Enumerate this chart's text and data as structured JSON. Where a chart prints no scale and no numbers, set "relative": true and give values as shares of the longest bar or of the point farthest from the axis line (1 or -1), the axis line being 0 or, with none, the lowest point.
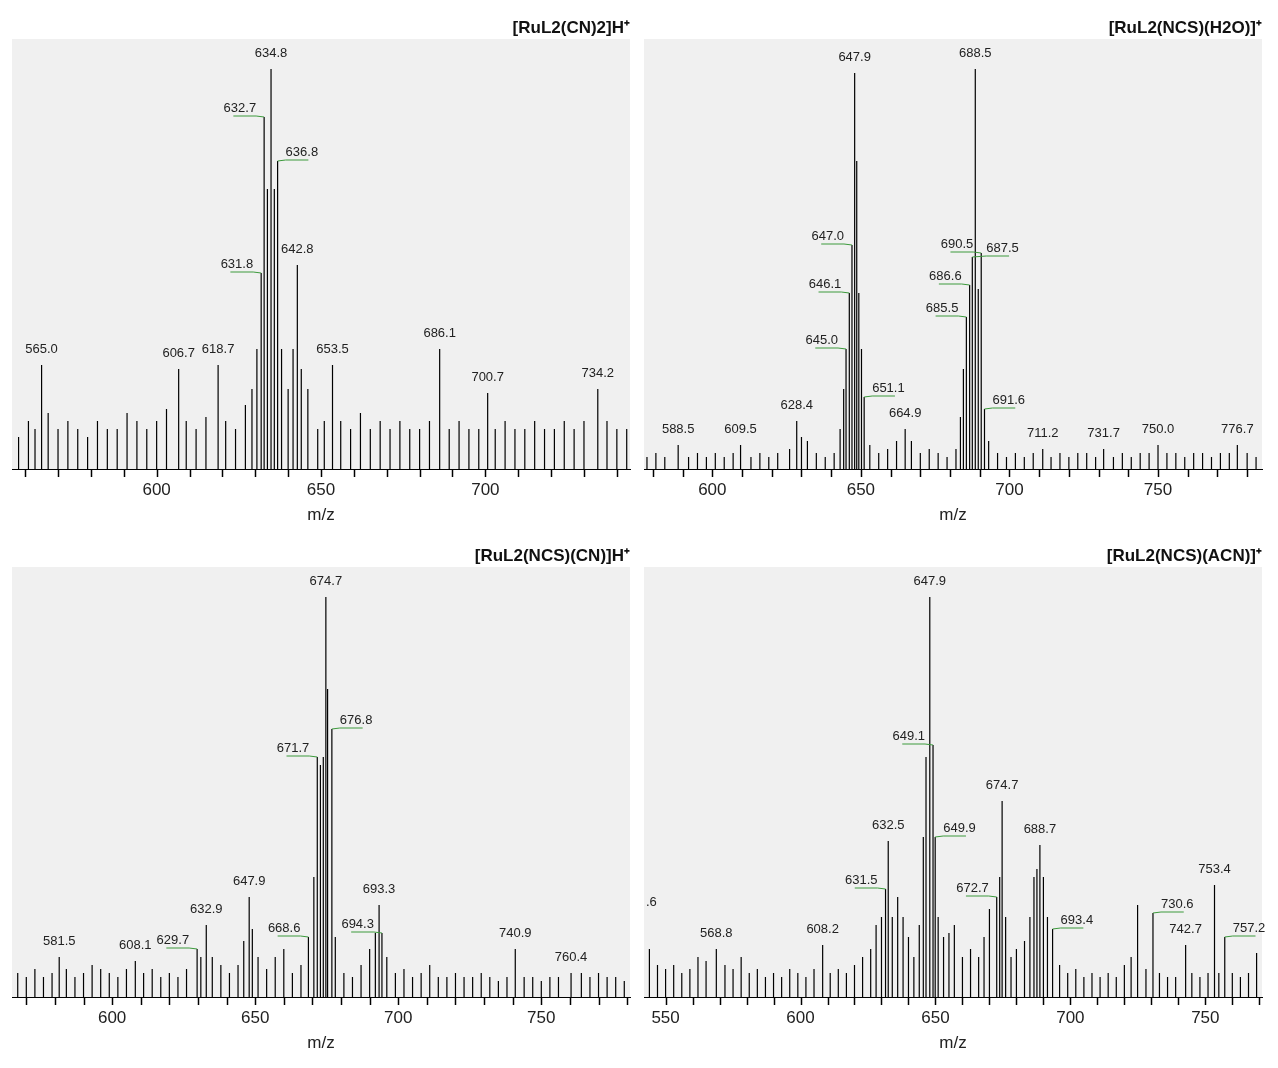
{
  "chart_data": [
    {
      "type": "bar",
      "title": "[RuL2(CN)2]H⁺",
      "xlabel": "m/z",
      "relative": true,
      "color": "#000000",
      "x": [
        558,
        561,
        563,
        565.0,
        567,
        570,
        573,
        576,
        579,
        582,
        585,
        588,
        591,
        594,
        597,
        600,
        603,
        606.7,
        609,
        612,
        615,
        618.7,
        621,
        624,
        627,
        629,
        630.5,
        631.8,
        632.7,
        633.7,
        634.8,
        635.8,
        636.8,
        638,
        640,
        641.5,
        642.8,
        644,
        646,
        649,
        651,
        653.5,
        656,
        659,
        662,
        665,
        668,
        671,
        674,
        677,
        680,
        683,
        686.1,
        689,
        692,
        695,
        698,
        700.7,
        703,
        706,
        709,
        712,
        715,
        718,
        721,
        724,
        727,
        730,
        734.2,
        737,
        740,
        743
      ],
      "values": [
        0.08,
        0.12,
        0.1,
        0.26,
        0.14,
        0.1,
        0.12,
        0.1,
        0.08,
        0.12,
        0.1,
        0.1,
        0.14,
        0.12,
        0.1,
        0.12,
        0.15,
        0.25,
        0.12,
        0.1,
        0.13,
        0.26,
        0.12,
        0.1,
        0.16,
        0.2,
        0.3,
        0.49,
        0.88,
        0.7,
        1,
        0.7,
        0.77,
        0.3,
        0.2,
        0.3,
        0.51,
        0.25,
        0.2,
        0.1,
        0.12,
        0.26,
        0.12,
        0.1,
        0.14,
        0.1,
        0.12,
        0.1,
        0.12,
        0.1,
        0.1,
        0.12,
        0.3,
        0.1,
        0.12,
        0.1,
        0.1,
        0.19,
        0.1,
        0.12,
        0.1,
        0.1,
        0.12,
        0.1,
        0.1,
        0.12,
        0.1,
        0.12,
        0.2,
        0.12,
        0.1,
        0.1
      ],
      "xlim": [
        556,
        744
      ],
      "xticks": [
        {
          "value": 560,
          "label": null
        },
        {
          "value": 570,
          "label": null
        },
        {
          "value": 580,
          "label": null
        },
        {
          "value": 590,
          "label": null
        },
        600,
        {
          "value": 610,
          "label": null
        },
        {
          "value": 620,
          "label": null
        },
        {
          "value": 630,
          "label": null
        },
        {
          "value": 640,
          "label": null
        },
        650,
        {
          "value": 660,
          "label": null
        },
        {
          "value": 670,
          "label": null
        },
        {
          "value": 680,
          "label": null
        },
        {
          "value": 690,
          "label": null
        },
        700,
        {
          "value": 710,
          "label": null
        },
        {
          "value": 720,
          "label": null
        },
        {
          "value": 730,
          "label": null
        },
        {
          "value": 740,
          "label": null
        }
      ],
      "annotations": [
        {
          "text": "565.0",
          "x": 565.0,
          "y": 0.26
        },
        {
          "text": "606.7",
          "x": 606.7,
          "y": 0.25
        },
        {
          "text": "618.7",
          "x": 618.7,
          "y": 0.26
        },
        {
          "text": "631.8",
          "x": 631.8,
          "y": 0.49
        },
        {
          "text": "632.7",
          "x": 632.7,
          "y": 0.88
        },
        {
          "text": "634.8",
          "x": 634.8,
          "y": 1
        },
        {
          "text": "636.8",
          "x": 636.8,
          "y": 0.77
        },
        {
          "text": "642.8",
          "x": 642.8,
          "y": 0.51
        },
        {
          "text": "653.5",
          "x": 653.5,
          "y": 0.26
        },
        {
          "text": "686.1",
          "x": 686.1,
          "y": 0.3
        },
        {
          "text": "700.7",
          "x": 700.7,
          "y": 0.19
        },
        {
          "text": "734.2",
          "x": 734.2,
          "y": 0.2
        }
      ]
    },
    {
      "type": "bar",
      "title": "[RuL2(NCS)(H2O)]⁺",
      "xlabel": "m/z",
      "relative": true,
      "color": "#000000",
      "x": [
        578,
        581,
        584,
        588.5,
        592,
        595,
        598,
        601,
        604,
        607,
        609.5,
        613,
        616,
        619,
        622,
        626,
        628.4,
        630,
        632,
        635,
        638,
        641,
        643,
        644.2,
        645.0,
        646.1,
        647.0,
        647.9,
        648.6,
        649.3,
        650.2,
        651.1,
        653,
        656,
        659,
        662,
        664.9,
        667,
        670,
        673,
        676,
        679,
        682,
        683.5,
        684.5,
        685.5,
        686.6,
        687.5,
        688.5,
        689.5,
        690.5,
        691.6,
        693,
        696,
        699,
        702,
        705,
        708,
        711.2,
        714,
        717,
        720,
        723,
        726,
        729,
        731.7,
        735,
        738,
        741,
        744,
        747,
        750.0,
        753,
        756,
        759,
        762,
        765,
        768,
        771,
        774,
        776.7,
        780,
        783
      ],
      "values": [
        0.03,
        0.04,
        0.03,
        0.06,
        0.03,
        0.04,
        0.03,
        0.04,
        0.03,
        0.04,
        0.06,
        0.03,
        0.04,
        0.03,
        0.04,
        0.05,
        0.12,
        0.08,
        0.07,
        0.04,
        0.03,
        0.04,
        0.1,
        0.2,
        0.3,
        0.44,
        0.56,
        0.99,
        0.77,
        0.44,
        0.3,
        0.18,
        0.06,
        0.04,
        0.05,
        0.07,
        0.1,
        0.07,
        0.04,
        0.05,
        0.04,
        0.03,
        0.05,
        0.13,
        0.25,
        0.38,
        0.46,
        0.53,
        1,
        0.45,
        0.54,
        0.15,
        0.07,
        0.04,
        0.03,
        0.04,
        0.03,
        0.04,
        0.05,
        0.03,
        0.04,
        0.03,
        0.04,
        0.04,
        0.03,
        0.05,
        0.03,
        0.04,
        0.03,
        0.04,
        0.04,
        0.06,
        0.04,
        0.04,
        0.03,
        0.04,
        0.04,
        0.03,
        0.04,
        0.04,
        0.06,
        0.04,
        0.03
      ],
      "xlim": [
        577,
        785
      ],
      "xticks": [
        {
          "value": 580,
          "label": null
        },
        {
          "value": 590,
          "label": null
        },
        600,
        {
          "value": 610,
          "label": null
        },
        {
          "value": 620,
          "label": null
        },
        {
          "value": 630,
          "label": null
        },
        {
          "value": 640,
          "label": null
        },
        650,
        {
          "value": 660,
          "label": null
        },
        {
          "value": 670,
          "label": null
        },
        {
          "value": 680,
          "label": null
        },
        {
          "value": 690,
          "label": null
        },
        700,
        {
          "value": 710,
          "label": null
        },
        {
          "value": 720,
          "label": null
        },
        {
          "value": 730,
          "label": null
        },
        {
          "value": 740,
          "label": null
        },
        750,
        {
          "value": 760,
          "label": null
        },
        {
          "value": 770,
          "label": null
        },
        {
          "value": 780,
          "label": null
        }
      ],
      "annotations": [
        {
          "text": "588.5",
          "x": 588.5,
          "y": 0.06
        },
        {
          "text": "609.5",
          "x": 609.5,
          "y": 0.06
        },
        {
          "text": "628.4",
          "x": 628.4,
          "y": 0.12
        },
        {
          "text": "645.0",
          "x": 645.0,
          "y": 0.3
        },
        {
          "text": "646.1",
          "x": 646.1,
          "y": 0.44
        },
        {
          "text": "647.0",
          "x": 647.0,
          "y": 0.56
        },
        {
          "text": "647.9",
          "x": 647.9,
          "y": 0.99
        },
        {
          "text": "651.1",
          "x": 651.1,
          "y": 0.18
        },
        {
          "text": "664.9",
          "x": 664.9,
          "y": 0.1
        },
        {
          "text": "685.5",
          "x": 685.5,
          "y": 0.38
        },
        {
          "text": "686.6",
          "x": 686.6,
          "y": 0.46
        },
        {
          "text": "687.5",
          "x": 687.5,
          "y": 0.53
        },
        {
          "text": "688.5",
          "x": 688.5,
          "y": 1
        },
        {
          "text": "690.5",
          "x": 690.5,
          "y": 0.54
        },
        {
          "text": "691.6",
          "x": 691.6,
          "y": 0.15
        },
        {
          "text": "711.2",
          "x": 711.2,
          "y": 0.05
        },
        {
          "text": "731.7",
          "x": 731.7,
          "y": 0.05
        },
        {
          "text": "750.0",
          "x": 750.0,
          "y": 0.06
        },
        {
          "text": "776.7",
          "x": 776.7,
          "y": 0.06
        }
      ]
    },
    {
      "type": "bar",
      "title": "[RuL2(NCS)(CN)]H⁺",
      "xlabel": "m/z",
      "relative": true,
      "color": "#000000",
      "x": [
        567,
        570,
        573,
        576,
        579,
        581.5,
        584,
        587,
        590,
        593,
        596,
        599,
        602,
        605,
        608.1,
        611,
        614,
        617,
        620,
        623,
        626,
        629.7,
        631,
        632.9,
        635,
        638,
        641,
        644,
        646,
        647.9,
        649,
        651,
        654,
        657,
        660,
        663,
        666,
        668.6,
        670.5,
        671.7,
        672.8,
        673.8,
        674.7,
        675.3,
        676.8,
        678,
        681,
        684,
        687,
        690,
        692,
        693.3,
        694.3,
        696,
        699,
        702,
        705,
        708,
        711,
        714,
        717,
        720,
        723,
        726,
        729,
        732,
        735,
        738,
        740.9,
        744,
        747,
        750,
        753,
        756,
        760.4,
        764,
        767,
        770,
        773,
        776,
        779
      ],
      "values": [
        0.06,
        0.05,
        0.07,
        0.05,
        0.06,
        0.1,
        0.07,
        0.05,
        0.06,
        0.08,
        0.07,
        0.06,
        0.05,
        0.07,
        0.09,
        0.06,
        0.07,
        0.05,
        0.06,
        0.05,
        0.07,
        0.12,
        0.1,
        0.18,
        0.1,
        0.08,
        0.06,
        0.08,
        0.14,
        0.25,
        0.17,
        0.1,
        0.07,
        0.1,
        0.12,
        0.06,
        0.08,
        0.15,
        0.3,
        0.6,
        0.58,
        0.6,
        1,
        0.77,
        0.67,
        0.15,
        0.06,
        0.05,
        0.08,
        0.12,
        0.16,
        0.23,
        0.16,
        0.1,
        0.06,
        0.07,
        0.05,
        0.06,
        0.08,
        0.05,
        0.05,
        0.06,
        0.05,
        0.05,
        0.06,
        0.05,
        0.04,
        0.05,
        0.12,
        0.05,
        0.05,
        0.04,
        0.05,
        0.05,
        0.06,
        0.06,
        0.05,
        0.06,
        0.05,
        0.05,
        0.04
      ],
      "xlim": [
        565,
        781
      ],
      "xticks": [
        {
          "value": 570,
          "label": null
        },
        {
          "value": 580,
          "label": null
        },
        {
          "value": 590,
          "label": null
        },
        600,
        {
          "value": 610,
          "label": null
        },
        {
          "value": 620,
          "label": null
        },
        {
          "value": 630,
          "label": null
        },
        {
          "value": 640,
          "label": null
        },
        650,
        {
          "value": 660,
          "label": null
        },
        {
          "value": 670,
          "label": null
        },
        {
          "value": 680,
          "label": null
        },
        {
          "value": 690,
          "label": null
        },
        700,
        {
          "value": 710,
          "label": null
        },
        {
          "value": 720,
          "label": null
        },
        {
          "value": 730,
          "label": null
        },
        {
          "value": 740,
          "label": null
        },
        750,
        {
          "value": 760,
          "label": null
        },
        {
          "value": 770,
          "label": null
        },
        {
          "value": 780,
          "label": null
        }
      ],
      "annotations": [
        {
          "text": "581.5",
          "x": 581.5,
          "y": 0.1
        },
        {
          "text": "608.1",
          "x": 608.1,
          "y": 0.09
        },
        {
          "text": "629.7",
          "x": 629.7,
          "y": 0.12
        },
        {
          "text": "632.9",
          "x": 632.9,
          "y": 0.18
        },
        {
          "text": "647.9",
          "x": 647.9,
          "y": 0.25
        },
        {
          "text": "668.6",
          "x": 668.6,
          "y": 0.15
        },
        {
          "text": "671.7",
          "x": 671.7,
          "y": 0.6
        },
        {
          "text": "674.7",
          "x": 674.7,
          "y": 1
        },
        {
          "text": "676.8",
          "x": 676.8,
          "y": 0.67
        },
        {
          "text": "693.3",
          "x": 693.3,
          "y": 0.23
        },
        {
          "text": "694.3",
          "x": 694.3,
          "y": 0.16
        },
        {
          "text": "740.9",
          "x": 740.9,
          "y": 0.12
        },
        {
          "text": "760.4",
          "x": 760.4,
          "y": 0.06
        }
      ]
    },
    {
      "type": "bar",
      "title": "[RuL2(NCS)(ACN)]⁺",
      "xlabel": "m/z",
      "relative": true,
      "color": "#000000",
      "x": [
        544,
        547,
        550,
        553,
        556,
        559,
        562,
        565,
        568.8,
        572,
        575,
        578,
        581,
        584,
        587,
        590,
        593,
        596,
        599,
        602,
        605,
        608.2,
        611,
        614,
        617,
        620,
        623,
        626,
        628,
        630,
        631.5,
        632.5,
        634,
        636,
        638,
        640,
        642,
        644,
        645.5,
        646.5,
        647.9,
        649.1,
        649.9,
        651,
        653,
        655,
        657,
        660,
        663,
        666,
        668,
        670,
        672.7,
        673.8,
        674.7,
        676,
        678,
        680,
        683,
        685,
        686.5,
        687.6,
        688.7,
        690,
        691.5,
        693.4,
        696,
        699,
        702,
        705,
        708,
        711,
        714,
        717,
        720,
        722.5,
        724.9,
        728,
        730.6,
        733,
        736,
        739,
        742.7,
        745,
        748,
        751,
        753.4,
        755,
        757.2,
        760,
        763,
        766,
        769
      ],
      "values": [
        0.12,
        0.08,
        0.07,
        0.08,
        0.06,
        0.07,
        0.1,
        0.09,
        0.12,
        0.08,
        0.07,
        0.1,
        0.06,
        0.07,
        0.05,
        0.06,
        0.05,
        0.07,
        0.06,
        0.05,
        0.07,
        0.13,
        0.06,
        0.07,
        0.06,
        0.08,
        0.1,
        0.12,
        0.18,
        0.2,
        0.27,
        0.39,
        0.2,
        0.25,
        0.2,
        0.15,
        0.1,
        0.18,
        0.4,
        0.6,
        1,
        0.63,
        0.4,
        0.2,
        0.15,
        0.16,
        0.18,
        0.1,
        0.12,
        0.1,
        0.15,
        0.22,
        0.25,
        0.3,
        0.49,
        0.2,
        0.1,
        0.12,
        0.14,
        0.2,
        0.3,
        0.32,
        0.38,
        0.3,
        0.2,
        0.17,
        0.08,
        0.06,
        0.07,
        0.05,
        0.06,
        0.05,
        0.06,
        0.05,
        0.08,
        0.1,
        0.23,
        0.07,
        0.21,
        0.06,
        0.05,
        0.05,
        0.13,
        0.06,
        0.05,
        0.06,
        0.28,
        0.06,
        0.15,
        0.06,
        0.05,
        0.06,
        0.11
      ],
      "xlim": [
        542,
        771
      ],
      "xticks": [
        550,
        {
          "value": 560,
          "label": null
        },
        {
          "value": 570,
          "label": null
        },
        {
          "value": 580,
          "label": null
        },
        {
          "value": 590,
          "label": null
        },
        600,
        {
          "value": 610,
          "label": null
        },
        {
          "value": 620,
          "label": null
        },
        {
          "value": 630,
          "label": null
        },
        {
          "value": 640,
          "label": null
        },
        650,
        {
          "value": 660,
          "label": null
        },
        {
          "value": 670,
          "label": null
        },
        {
          "value": 680,
          "label": null
        },
        {
          "value": 690,
          "label": null
        },
        700,
        {
          "value": 710,
          "label": null
        },
        {
          "value": 720,
          "label": null
        },
        {
          "value": 730,
          "label": null
        },
        {
          "value": 740,
          "label": null
        },
        750,
        {
          "value": 760,
          "label": null
        },
        {
          "value": 770,
          "label": null
        }
      ],
      "annotations": [
        ".6",
        {
          "text": "568.8",
          "x": 568.8,
          "y": 0.12
        },
        {
          "text": "608.2",
          "x": 608.2,
          "y": 0.13
        },
        {
          "text": "631.5",
          "x": 631.5,
          "y": 0.27
        },
        {
          "text": "632.5",
          "x": 632.5,
          "y": 0.39
        },
        {
          "text": "647.9",
          "x": 647.9,
          "y": 1
        },
        {
          "text": "649.1",
          "x": 649.1,
          "y": 0.63
        },
        {
          "text": "649.9",
          "x": 649.9,
          "y": 0.4
        },
        {
          "text": "672.7",
          "x": 672.7,
          "y": 0.25
        },
        {
          "text": "674.7",
          "x": 674.7,
          "y": 0.49
        },
        {
          "text": "688.7",
          "x": 688.7,
          "y": 0.38
        },
        {
          "text": "693.4",
          "x": 693.4,
          "y": 0.17
        },
        {
          "text": "730.6",
          "x": 730.6,
          "y": 0.21
        },
        {
          "text": "742.7",
          "x": 742.7,
          "y": 0.13
        },
        {
          "text": "753.4",
          "x": 753.4,
          "y": 0.28
        },
        {
          "text": "757.2",
          "x": 757.2,
          "y": 0.15
        }
      ]
    }
  ]
}
